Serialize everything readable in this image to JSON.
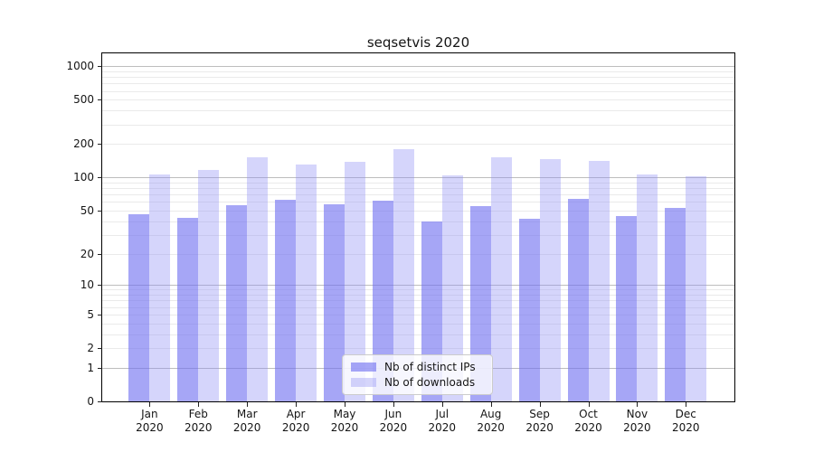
{
  "chart_data": {
    "type": "bar",
    "title": "seqsetvis 2020",
    "xlabel": "",
    "ylabel": "",
    "categories": [
      "Jan",
      "Feb",
      "Mar",
      "Apr",
      "May",
      "Jun",
      "Jul",
      "Aug",
      "Sep",
      "Oct",
      "Nov",
      "Dec"
    ],
    "category_year": "2020",
    "series": [
      {
        "name": "Nb of distinct IPs",
        "color": "rgba(112,112,240,0.62)",
        "apparent_hex": "#a6a6f4",
        "values": [
          46,
          43,
          56,
          63,
          57,
          62,
          40,
          55,
          42,
          64,
          45,
          53
        ]
      },
      {
        "name": "Nb of downloads",
        "color": "rgba(140,140,243,0.37)",
        "apparent_hex": "#d5d5fb",
        "values": [
          106,
          116,
          152,
          132,
          138,
          181,
          104,
          152,
          146,
          140,
          106,
          102
        ]
      }
    ],
    "yscale": "log10(value+1)",
    "y_ticks": [
      0,
      1,
      2,
      5,
      10,
      20,
      50,
      100,
      200,
      500,
      1000
    ],
    "ylim": [
      0,
      1320
    ],
    "grid": "horizontal; dark major lines at decades 1/10/100/1000, light minor lines at 2-9 multiples",
    "legend_position": "lower center"
  },
  "colors": {
    "major_grid": "#bdbdbd",
    "minor_grid": "#eaeaea",
    "spine": "#000000",
    "text": "#151515",
    "legend_border": "#cccccc",
    "background": "#ffffff"
  }
}
